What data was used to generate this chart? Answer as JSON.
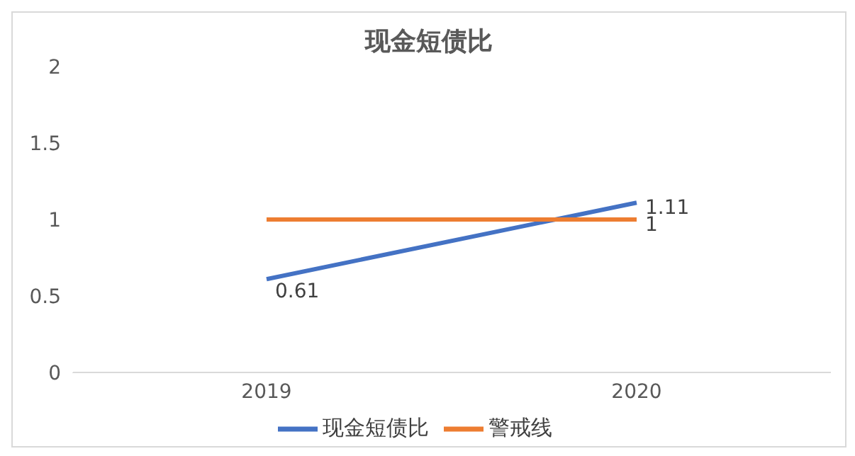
{
  "chart_data": {
    "type": "line",
    "title": "现金短债比",
    "categories": [
      "2019",
      "2020"
    ],
    "series": [
      {
        "name": "现金短债比",
        "color": "#4472c4",
        "values": [
          0.61,
          1.11
        ],
        "value_labels": [
          "0.61",
          "1.11"
        ]
      },
      {
        "name": "警戒线",
        "color": "#ed7d31",
        "values": [
          1,
          1
        ],
        "value_labels": [
          null,
          "1"
        ]
      }
    ],
    "ylim": [
      0,
      2
    ],
    "yticks": [
      0,
      0.5,
      1,
      1.5,
      2
    ],
    "grid": false,
    "legend": "bottom",
    "marker": "none",
    "line_style": "solid"
  }
}
